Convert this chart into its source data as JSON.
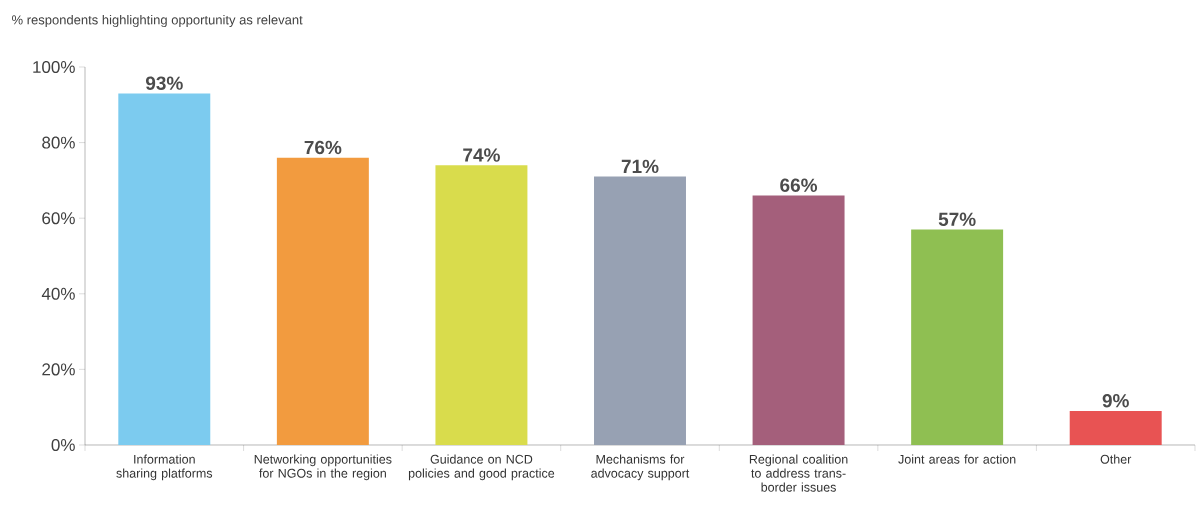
{
  "chart_data": {
    "type": "bar",
    "ylabel": "% respondents highlighting opportunity as relevant",
    "categories": [
      "Information sharing platforms",
      "Networking opportunities for NGOs in the region",
      "Guidance on NCD policies and good practice",
      "Mechanisms for advocacy support",
      "Regional coalition to address trans-border issues",
      "Joint areas for action",
      "Other"
    ],
    "values": [
      93,
      76,
      74,
      71,
      66,
      57,
      9
    ],
    "colors": [
      "#7ccbef",
      "#f29b3f",
      "#d9dc4c",
      "#97a1b3",
      "#a45f7b",
      "#8fbf52",
      "#e85353"
    ],
    "value_labels": [
      "93%",
      "76%",
      "74%",
      "71%",
      "66%",
      "57%",
      "9%"
    ],
    "ylim": [
      0,
      100
    ],
    "yticks": [
      {
        "value": 0,
        "label": "0%"
      },
      {
        "value": 20,
        "label": "20%"
      },
      {
        "value": 40,
        "label": "40%"
      },
      {
        "value": 60,
        "label": "60%"
      },
      {
        "value": 80,
        "label": "80%"
      },
      {
        "value": 100,
        "label": "100%"
      }
    ],
    "grid": false
  }
}
